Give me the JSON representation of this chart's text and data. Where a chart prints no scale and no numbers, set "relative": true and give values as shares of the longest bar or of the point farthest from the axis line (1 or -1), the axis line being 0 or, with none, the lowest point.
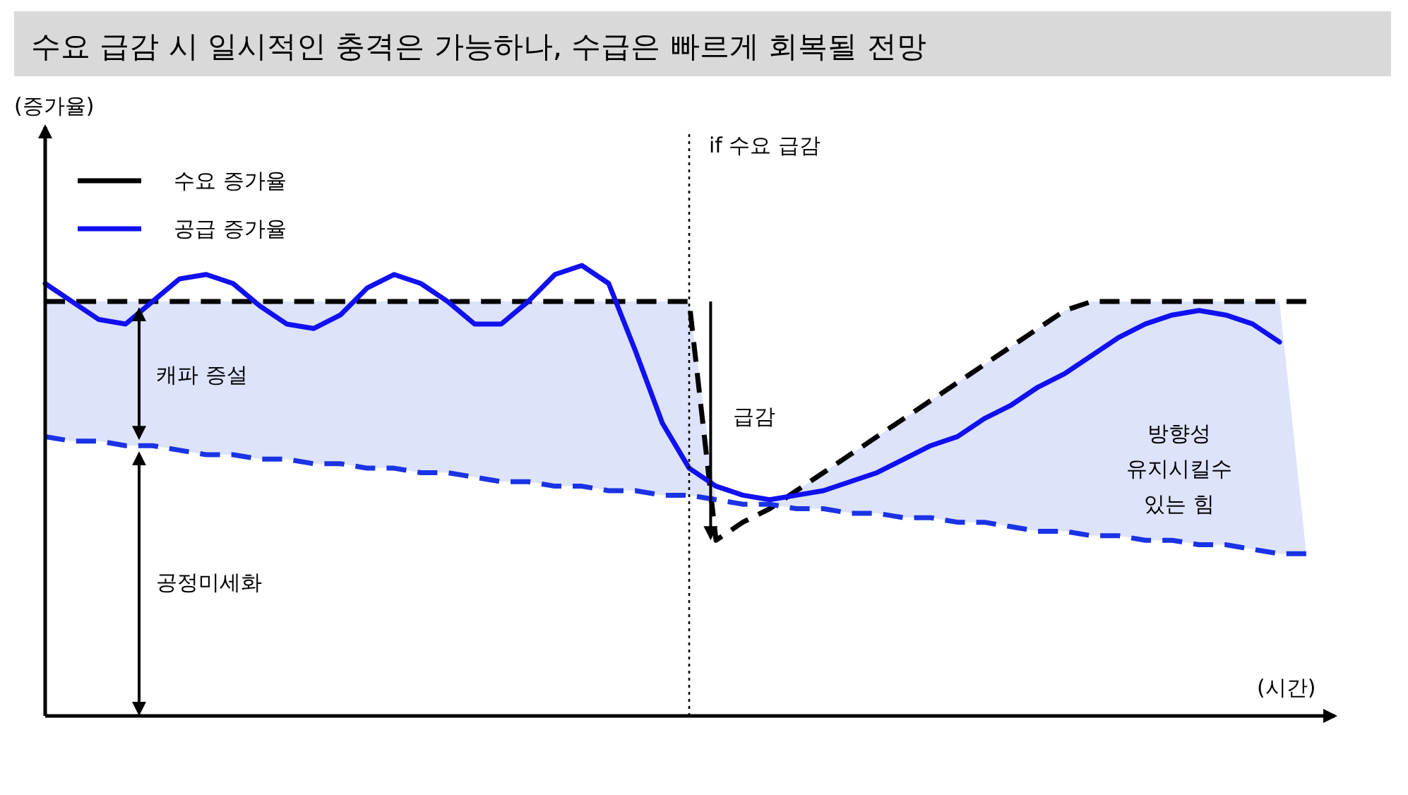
{
  "chart_data": {
    "type": "line",
    "relative": true,
    "title": "수요 급감 시 일시적인 충격은 가능하나, 수급은 빠르게 회복될 전망",
    "xlabel": "(시간)",
    "legend": "top left",
    "categories": [
      null,
      null,
      null,
      null,
      null,
      null,
      null,
      null,
      null,
      null,
      null,
      null,
      null,
      null,
      null,
      null,
      null,
      null,
      null,
      null,
      null,
      null,
      null,
      null,
      null,
      null,
      null,
      null,
      null,
      null,
      null,
      null,
      null,
      null,
      null,
      null,
      null,
      null,
      null,
      null,
      null,
      null,
      null,
      null,
      null,
      null,
      null,
      null
    ],
    "series": [
      {
        "name": "수요 증가율",
        "color": "#000000",
        "line_style": "dashed",
        "values": [
          0.92,
          0.92,
          0.92,
          0.92,
          0.92,
          0.92,
          0.92,
          0.92,
          0.92,
          0.92,
          0.92,
          0.92,
          0.92,
          0.92,
          0.92,
          0.92,
          0.92,
          0.92,
          0.92,
          0.92,
          0.92,
          0.92,
          0.92,
          0.92,
          0.92,
          0.39,
          0.43,
          0.46,
          0.5,
          0.54,
          0.58,
          0.62,
          0.66,
          0.7,
          0.74,
          0.78,
          0.82,
          0.86,
          0.9,
          0.92,
          0.92,
          0.92,
          0.92,
          0.92,
          0.92,
          0.92,
          0.92,
          0.92
        ]
      },
      {
        "name": "공급 증가율",
        "color": "#1010f0",
        "line_style": "solid",
        "values": [
          0.96,
          0.92,
          0.88,
          0.87,
          0.92,
          0.97,
          0.98,
          0.96,
          0.91,
          0.87,
          0.86,
          0.89,
          0.95,
          0.98,
          0.96,
          0.92,
          0.87,
          0.87,
          0.92,
          0.98,
          1.0,
          0.96,
          0.81,
          0.65,
          0.55,
          0.51,
          0.49,
          0.48,
          0.49,
          0.5,
          0.52,
          0.54,
          0.57,
          0.6,
          0.62,
          0.66,
          0.69,
          0.73,
          0.76,
          0.8,
          0.84,
          0.87,
          0.89,
          0.9,
          0.89,
          0.87,
          0.83,
          null
        ]
      },
      {
        "color": "#1a33e6",
        "line_style": "dashed",
        "values": [
          0.62,
          0.61,
          0.61,
          0.6,
          0.6,
          0.59,
          0.58,
          0.58,
          0.57,
          0.57,
          0.56,
          0.56,
          0.55,
          0.55,
          0.54,
          0.54,
          0.53,
          0.52,
          0.52,
          0.51,
          0.51,
          0.5,
          0.5,
          0.49,
          0.49,
          0.48,
          0.47,
          0.47,
          0.46,
          0.46,
          0.45,
          0.45,
          0.44,
          0.44,
          0.43,
          0.43,
          0.42,
          0.41,
          0.41,
          0.4,
          0.4,
          0.39,
          0.39,
          0.38,
          0.38,
          0.37,
          0.36,
          0.36
        ],
        "lower": [
          0.62,
          0.61,
          0.61,
          0.6,
          0.6,
          0.59,
          0.58,
          0.58,
          0.57,
          0.57,
          0.56,
          0.56,
          0.55,
          0.55,
          0.54,
          0.54,
          0.53,
          0.52,
          0.52,
          0.51,
          0.51,
          0.5,
          0.5,
          0.49,
          0.49,
          0.48,
          0.47,
          0.47,
          0.46,
          0.46,
          0.45,
          0.45,
          0.44,
          0.44,
          0.43,
          0.43,
          0.42,
          0.41,
          0.41,
          0.4,
          0.4,
          0.39,
          0.39,
          0.38,
          0.38,
          0.37,
          0.36,
          0.36
        ],
        "upper": [
          0.92,
          0.92,
          0.92,
          0.92,
          0.92,
          0.92,
          0.92,
          0.92,
          0.92,
          0.92,
          0.92,
          0.92,
          0.92,
          0.92,
          0.92,
          0.92,
          0.92,
          0.92,
          0.92,
          0.92,
          0.92,
          0.92,
          0.92,
          0.92,
          0.92,
          0.48,
          0.47,
          0.47,
          0.5,
          0.54,
          0.58,
          0.62,
          0.66,
          0.7,
          0.74,
          0.78,
          0.82,
          0.86,
          0.9,
          0.92,
          0.92,
          0.92,
          0.92,
          0.92,
          0.92,
          0.92,
          0.92,
          0.36
        ]
      }
    ],
    "annotations": [
      "캐파 증설",
      "공정미세화",
      "급감",
      "방향성\n유지시킬수\n있는 힘",
      "if 수요 급감",
      "(증가율)"
    ]
  }
}
